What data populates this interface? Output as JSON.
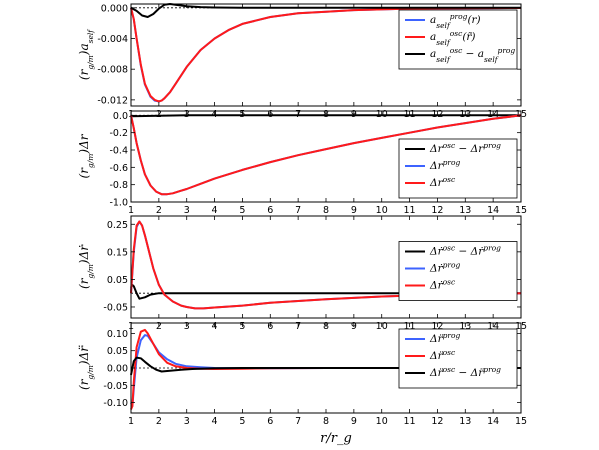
{
  "xlabel": "r/r_g",
  "x_ticks": [
    "1",
    "2",
    "3",
    "4",
    "5",
    "6",
    "7",
    "8",
    "9",
    "10",
    "11",
    "12",
    "13",
    "14",
    "15"
  ],
  "colors": {
    "blue": "#3d63ff",
    "red": "#ff1a1a",
    "black": "#000000"
  },
  "chart_data": [
    {
      "type": "line",
      "ylabel": "(r_g/m)a_self",
      "xlim": [
        1,
        15
      ],
      "ylim": [
        -0.0128,
        0.0005
      ],
      "yticks": [
        "0.000",
        "-0.004",
        "-0.008",
        "-0.012"
      ],
      "ytick_values": [
        0,
        -0.004,
        -0.008,
        -0.012
      ],
      "legend": {
        "position": "top-right",
        "entries": [
          "a_self^prog(r)",
          "a_self^osc(r̃)",
          "a_self^osc − a_self^prog"
        ]
      },
      "series": [
        {
          "name": "a_self^prog(r)",
          "color": "blue",
          "x": [
            1,
            1.1,
            1.2,
            1.35,
            1.5,
            1.7,
            1.85,
            2.0,
            2.1,
            2.2,
            2.4,
            2.6,
            3.0,
            3.5,
            4,
            4.5,
            5,
            6,
            7,
            8,
            9,
            10,
            11,
            12,
            13,
            14,
            15
          ],
          "y": [
            0,
            -0.0015,
            -0.004,
            -0.0075,
            -0.01,
            -0.0116,
            -0.0121,
            -0.0122,
            -0.0121,
            -0.0118,
            -0.011,
            -0.0099,
            -0.0077,
            -0.0055,
            -0.004,
            -0.0029,
            -0.0021,
            -0.0012,
            -0.0007,
            -0.0005,
            -0.0003,
            -0.0002,
            -0.0001,
            -8e-05,
            -5e-05,
            -3e-05,
            -2e-05
          ]
        },
        {
          "name": "a_self^osc(r̃)",
          "color": "red",
          "x": [
            1,
            1.1,
            1.2,
            1.35,
            1.5,
            1.7,
            1.85,
            2.0,
            2.1,
            2.2,
            2.4,
            2.6,
            3.0,
            3.5,
            4,
            4.5,
            5,
            6,
            7,
            8,
            9,
            10,
            11,
            12,
            13,
            14,
            15
          ],
          "y": [
            0,
            -0.0015,
            -0.004,
            -0.0074,
            -0.0099,
            -0.0115,
            -0.012,
            -0.0122,
            -0.0121,
            -0.0118,
            -0.011,
            -0.0099,
            -0.0077,
            -0.0055,
            -0.004,
            -0.0029,
            -0.0021,
            -0.0012,
            -0.0007,
            -0.0005,
            -0.0003,
            -0.0002,
            -0.0001,
            -8e-05,
            -5e-05,
            -3e-05,
            -2e-05
          ]
        },
        {
          "name": "a_self^osc − a_self^prog",
          "color": "black",
          "x": [
            1,
            1.2,
            1.4,
            1.6,
            1.8,
            2.0,
            2.2,
            2.4,
            2.6,
            3.0,
            3.5,
            4,
            5,
            6,
            8,
            10,
            12,
            15
          ],
          "y": [
            0,
            -0.0004,
            -0.001,
            -0.0012,
            -0.0008,
            -0.0001,
            0.0004,
            0.0005,
            0.0004,
            0.0002,
            0.0001,
            5e-05,
            0,
            0,
            0,
            0,
            0,
            0
          ]
        }
      ]
    },
    {
      "type": "line",
      "ylabel": "(r_g/m)Δr",
      "xlim": [
        1,
        15
      ],
      "ylim": [
        -1.0,
        0.05
      ],
      "yticks": [
        "0.0",
        "-0.2",
        "-0.4",
        "-0.6",
        "-0.8",
        "-1.0"
      ],
      "ytick_values": [
        0,
        -0.2,
        -0.4,
        -0.6,
        -0.8,
        -1.0
      ],
      "legend": {
        "position": "bottom-right",
        "entries": [
          "Δr^osc − Δr^prog",
          "Δr^prog",
          "Δr^osc"
        ]
      },
      "series": [
        {
          "name": "Δr^osc − Δr^prog",
          "color": "black",
          "x": [
            1,
            2,
            3,
            5,
            8,
            11,
            15
          ],
          "y": [
            -0.01,
            -0.005,
            0,
            0,
            0,
            0,
            0
          ]
        },
        {
          "name": "Δr^prog",
          "color": "blue",
          "x": [
            1,
            1.1,
            1.2,
            1.35,
            1.5,
            1.7,
            1.9,
            2.1,
            2.3,
            2.5,
            2.8,
            3,
            3.5,
            4,
            5,
            6,
            7,
            8,
            9,
            10,
            11,
            12,
            13,
            14,
            15
          ],
          "y": [
            0,
            -0.15,
            -0.32,
            -0.52,
            -0.68,
            -0.81,
            -0.88,
            -0.91,
            -0.91,
            -0.9,
            -0.87,
            -0.85,
            -0.79,
            -0.73,
            -0.63,
            -0.54,
            -0.46,
            -0.39,
            -0.32,
            -0.26,
            -0.2,
            -0.14,
            -0.09,
            -0.04,
            0.0
          ]
        },
        {
          "name": "Δr^osc",
          "color": "red",
          "x": [
            1,
            1.1,
            1.2,
            1.35,
            1.5,
            1.7,
            1.9,
            2.1,
            2.3,
            2.5,
            2.8,
            3,
            3.5,
            4,
            5,
            6,
            7,
            8,
            9,
            10,
            11,
            12,
            13,
            14,
            15
          ],
          "y": [
            0,
            -0.15,
            -0.32,
            -0.52,
            -0.68,
            -0.81,
            -0.88,
            -0.91,
            -0.91,
            -0.9,
            -0.87,
            -0.85,
            -0.79,
            -0.73,
            -0.63,
            -0.54,
            -0.46,
            -0.39,
            -0.32,
            -0.26,
            -0.2,
            -0.14,
            -0.09,
            -0.04,
            0.0
          ]
        }
      ]
    },
    {
      "type": "line",
      "ylabel": "(r_g/m)Δṙ",
      "xlim": [
        1,
        15
      ],
      "ylim": [
        -0.09,
        0.28
      ],
      "yticks": [
        "0.25",
        "0.15",
        "0.05",
        "-0.05"
      ],
      "ytick_values": [
        0.25,
        0.15,
        0.05,
        -0.05
      ],
      "legend": {
        "position": "center-right",
        "entries": [
          "Δṙ^osc − Δṙ^prog",
          "Δṙ^prog",
          "Δṙ^osc"
        ]
      },
      "series": [
        {
          "name": "Δṙ^osc − Δṙ^prog",
          "color": "black",
          "x": [
            1,
            1.05,
            1.1,
            1.2,
            1.3,
            1.5,
            1.7,
            2.0,
            2.5,
            3,
            5,
            8,
            15
          ],
          "y": [
            0.02,
            0.03,
            0.025,
            0.0,
            -0.02,
            -0.015,
            -0.005,
            0.0,
            0.0,
            0.0,
            0.0,
            0.0,
            0.0
          ]
        },
        {
          "name": "Δṙ^prog",
          "color": "blue",
          "x": [
            1,
            1.1,
            1.2,
            1.3,
            1.4,
            1.5,
            1.6,
            1.8,
            2.0,
            2.2,
            2.5,
            2.8,
            3.0,
            3.3,
            3.6,
            4,
            5,
            6,
            8,
            10,
            12,
            15
          ],
          "y": [
            0,
            0.15,
            0.24,
            0.26,
            0.245,
            0.21,
            0.17,
            0.09,
            0.03,
            -0.005,
            -0.03,
            -0.045,
            -0.05,
            -0.055,
            -0.055,
            -0.052,
            -0.045,
            -0.035,
            -0.022,
            -0.012,
            -0.006,
            0.0
          ]
        },
        {
          "name": "Δṙ^osc",
          "color": "red",
          "x": [
            1,
            1.1,
            1.2,
            1.3,
            1.4,
            1.5,
            1.6,
            1.8,
            2.0,
            2.2,
            2.5,
            2.8,
            3.0,
            3.3,
            3.6,
            4,
            5,
            6,
            8,
            10,
            12,
            15
          ],
          "y": [
            0,
            0.16,
            0.245,
            0.26,
            0.245,
            0.21,
            0.17,
            0.09,
            0.03,
            -0.005,
            -0.03,
            -0.045,
            -0.05,
            -0.055,
            -0.055,
            -0.052,
            -0.045,
            -0.035,
            -0.022,
            -0.012,
            -0.006,
            0.0
          ]
        }
      ]
    },
    {
      "type": "line",
      "ylabel": "(r_g/m)Δr̈",
      "xlim": [
        1,
        15
      ],
      "ylim": [
        -0.13,
        0.13
      ],
      "yticks": [
        "0.10",
        "0.05",
        "0.00",
        "-0.05",
        "-0.10"
      ],
      "ytick_values": [
        0.1,
        0.05,
        0.0,
        -0.05,
        -0.1
      ],
      "legend": {
        "position": "top-right",
        "entries": [
          "Δr̈^prog",
          "Δr̈^osc",
          "Δr̈^osc − Δr̈^prog"
        ]
      },
      "series": [
        {
          "name": "Δr̈^prog",
          "color": "blue",
          "x": [
            1,
            1.05,
            1.1,
            1.2,
            1.35,
            1.5,
            1.6,
            1.8,
            2.0,
            2.3,
            2.6,
            3.0,
            3.5,
            4,
            5,
            6,
            8,
            10,
            15
          ],
          "y": [
            -0.1,
            -0.11,
            -0.06,
            0.03,
            0.08,
            0.095,
            0.093,
            0.07,
            0.045,
            0.025,
            0.012,
            0.005,
            0.002,
            0.0,
            -0.001,
            -0.001,
            0.0,
            0.0,
            0.0
          ]
        },
        {
          "name": "Δr̈^osc",
          "color": "red",
          "x": [
            1,
            1.05,
            1.1,
            1.2,
            1.35,
            1.5,
            1.6,
            1.8,
            2.0,
            2.3,
            2.6,
            3.0,
            3.5,
            4,
            5,
            6,
            8,
            10,
            15
          ],
          "y": [
            -0.12,
            -0.11,
            -0.04,
            0.06,
            0.105,
            0.11,
            0.1,
            0.07,
            0.04,
            0.015,
            0.005,
            0.0,
            -0.002,
            -0.003,
            -0.002,
            -0.001,
            0.0,
            0.0,
            0.0
          ]
        },
        {
          "name": "Δr̈^osc − Δr̈^prog",
          "color": "black",
          "x": [
            1,
            1.05,
            1.1,
            1.2,
            1.35,
            1.5,
            1.7,
            1.9,
            2.1,
            2.4,
            2.8,
            3.2,
            4,
            5,
            7,
            10,
            15
          ],
          "y": [
            -0.02,
            0.0,
            0.02,
            0.03,
            0.028,
            0.018,
            0.005,
            -0.005,
            -0.01,
            -0.008,
            -0.005,
            -0.003,
            -0.001,
            0.0,
            0.0,
            0.0,
            0.0
          ]
        }
      ]
    }
  ]
}
